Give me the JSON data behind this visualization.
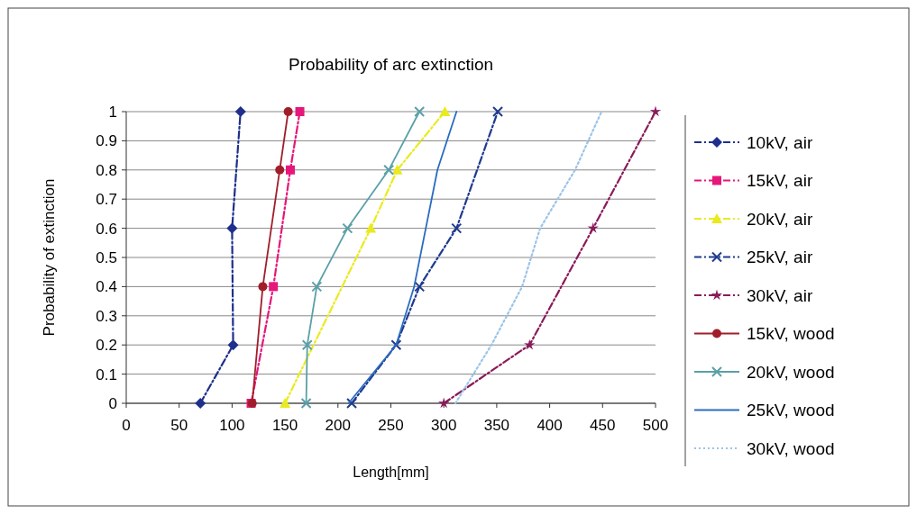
{
  "chart_data": {
    "type": "line",
    "title": "Probability of arc extinction",
    "xlabel": "Length[mm]",
    "ylabel": "Probability of extinction",
    "xlim": [
      0,
      500
    ],
    "xticks": [
      0,
      50,
      100,
      150,
      200,
      250,
      300,
      350,
      400,
      450,
      500
    ],
    "ylim": [
      0,
      1
    ],
    "yticks": [
      0,
      0.1,
      0.2,
      0.3,
      0.4,
      0.5,
      0.6,
      0.7,
      0.8,
      0.9,
      1
    ],
    "grid": "y",
    "legend": "right",
    "series": [
      {
        "name": "10kV, air",
        "color": "#1f2f8c",
        "marker": "diamond",
        "line_style": "dashed",
        "x": [
          70,
          101,
          100,
          108
        ],
        "values": [
          0,
          0.2,
          0.6,
          1
        ]
      },
      {
        "name": "15kV, air",
        "color": "#e6177a",
        "marker": "square",
        "line_style": "dashed",
        "x": [
          118,
          139,
          155,
          164
        ],
        "values": [
          0,
          0.4,
          0.8,
          1
        ]
      },
      {
        "name": "20kV, air",
        "color": "#eaea20",
        "marker": "triangle",
        "line_style": "dashed",
        "x": [
          150,
          231,
          256,
          301
        ],
        "values": [
          0,
          0.6,
          0.8,
          1
        ]
      },
      {
        "name": "25kV, air",
        "color": "#1f3a8f",
        "marker": "cross",
        "line_style": "dashed",
        "x": [
          213,
          255,
          277,
          312,
          351
        ],
        "values": [
          0,
          0.2,
          0.4,
          0.6,
          1
        ]
      },
      {
        "name": "30kV, air",
        "color": "#8b1a5a",
        "marker": "star",
        "line_style": "dashed",
        "x": [
          300,
          381,
          441,
          500
        ],
        "values": [
          0,
          0.2,
          0.6,
          1
        ]
      },
      {
        "name": "15kV, wood",
        "color": "#a01e2a",
        "marker": "circle",
        "line_style": "solid",
        "x": [
          119,
          129,
          145,
          153
        ],
        "values": [
          0,
          0.4,
          0.8,
          1
        ]
      },
      {
        "name": "20kV, wood",
        "color": "#5aa0a8",
        "marker": "cross",
        "line_style": "solid",
        "x": [
          170,
          171,
          180,
          209,
          248,
          277
        ],
        "values": [
          0,
          0.2,
          0.4,
          0.6,
          0.8,
          1
        ]
      },
      {
        "name": "25kV, wood",
        "color": "#2a6cc0",
        "marker": "none",
        "line_style": "solid",
        "x": [
          210,
          255,
          272,
          283,
          294,
          312
        ],
        "values": [
          0,
          0.2,
          0.4,
          0.6,
          0.8,
          1
        ]
      },
      {
        "name": "30kV, wood",
        "color": "#9cc4e8",
        "marker": "none",
        "line_style": "dotted",
        "x": [
          311,
          345,
          374,
          391,
          424,
          449
        ],
        "values": [
          0,
          0.2,
          0.4,
          0.6,
          0.8,
          1
        ]
      }
    ]
  }
}
